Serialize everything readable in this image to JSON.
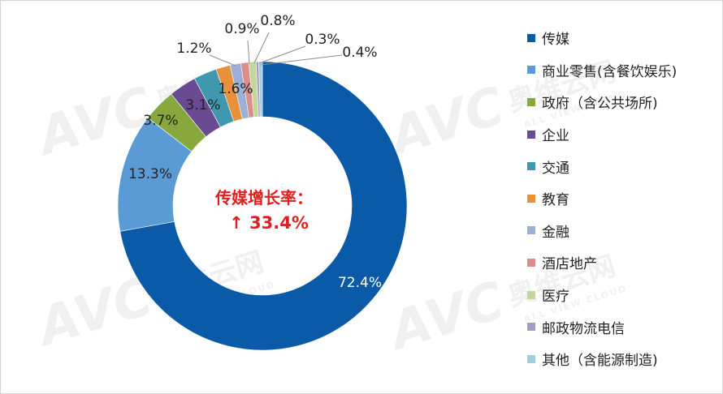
{
  "chart_data": {
    "type": "donut",
    "title": "",
    "center_label": {
      "line1": "传媒增长率：",
      "line2": "↑ 33.4%",
      "color": "#e02020"
    },
    "series": [
      {
        "name": "传媒",
        "value": 72.4,
        "label": "72.4%",
        "color": "#0b5aa8"
      },
      {
        "name": "商业零售(含餐饮娱乐)",
        "value": 13.3,
        "label": "13.3%",
        "color": "#5b9bd5"
      },
      {
        "name": "政府（含公共场所)",
        "value": 3.7,
        "label": "3.7%",
        "color": "#86a83c"
      },
      {
        "name": "企业",
        "value": 3.1,
        "label": "3.1%",
        "color": "#6a4b93"
      },
      {
        "name": "交通",
        "value": 2.6,
        "label": "",
        "color": "#3f98b0"
      },
      {
        "name": "教育",
        "value": 1.6,
        "label": "1.6%",
        "color": "#e8913a"
      },
      {
        "name": "金融",
        "value": 1.2,
        "label": "1.2%",
        "color": "#9bb0d6"
      },
      {
        "name": "酒店地产",
        "value": 0.9,
        "label": "0.9%",
        "color": "#dc8e8b"
      },
      {
        "name": "医疗",
        "value": 0.8,
        "label": "0.8%",
        "color": "#c3d69b"
      },
      {
        "name": "邮政物流电信",
        "value": 0.3,
        "label": "0.3%",
        "color": "#a99bc4"
      },
      {
        "name": "其他（含能源制造)",
        "value": 0.4,
        "label": "0.4%",
        "color": "#9fd0df"
      }
    ],
    "legend_position": "right",
    "start_angle_deg": 0,
    "direction": "clockwise"
  },
  "watermark": {
    "brand": "AVC",
    "cn": "奥维云网",
    "en": "ALL VIEW CLOUD"
  }
}
